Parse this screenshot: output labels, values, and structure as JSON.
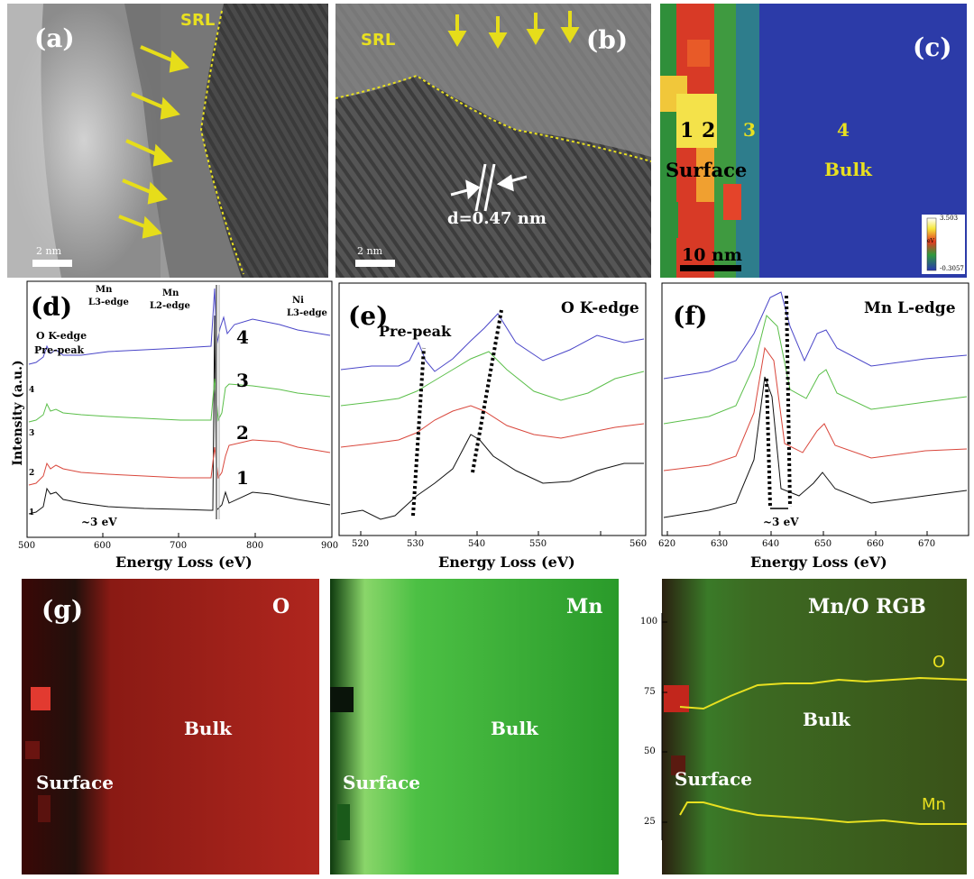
{
  "panel_a": {
    "letter": "(a)",
    "srl": "SRL",
    "scale": "2 nm"
  },
  "panel_b": {
    "letter": "(b)",
    "srl": "SRL",
    "d_spacing": "d=0.47 nm",
    "scale": "2 nm"
  },
  "panel_c": {
    "letter": "(c)",
    "p1": "1",
    "p2": "2",
    "p3": "3",
    "p4": "4",
    "surface": "Surface",
    "bulk": "Bulk",
    "scale": "10 nm",
    "colorbar_max": "3.503",
    "colorbar_min": "-0.3057",
    "colorbar_unit": "eV"
  },
  "panel_d": {
    "letter": "(d)",
    "mn_l3": [
      "Mn",
      "L3-edge"
    ],
    "mn_l2": [
      "Mn",
      "L2-edge"
    ],
    "ni_l3": [
      "Ni",
      "L3-edge"
    ],
    "ok_edge": "O K-edge",
    "prepeak": "Pre-peak",
    "ylabel": "Intensity (a.u.)",
    "xlabel": "Energy Loss (eV)",
    "shift": "~3 eV",
    "curve_labels": [
      "1",
      "2",
      "3",
      "4"
    ],
    "small_labels": [
      "1",
      "2",
      "3",
      "4"
    ],
    "xticks": [
      "500",
      "600",
      "700",
      "800",
      "900"
    ]
  },
  "panel_e": {
    "letter": "(e)",
    "edge": "O K-edge",
    "prepeak": "Pre-peak",
    "xlabel": "Energy Loss (eV)",
    "xticks": [
      "520",
      "530",
      "540",
      "550",
      "560"
    ]
  },
  "panel_f": {
    "letter": "(f)",
    "edge": "Mn L-edge",
    "shift": "~3 eV",
    "xlabel": "Energy Loss (eV)",
    "xticks": [
      "620",
      "630",
      "640",
      "650",
      "660",
      "670"
    ]
  },
  "panel_g": {
    "letter": "(g)",
    "o_map": {
      "title": "O",
      "bulk": "Bulk",
      "surface": "Surface"
    },
    "mn_map": {
      "title": "Mn",
      "bulk": "Bulk",
      "surface": "Surface"
    },
    "rgb_map": {
      "title": "Mn/O RGB",
      "bulk": "Bulk",
      "surface": "Surface",
      "o_line": "O",
      "mn_line": "Mn",
      "yticks": [
        "100",
        "75",
        "50",
        "25"
      ]
    }
  },
  "colors": {
    "srl_line": "#e8e020",
    "arrow": "#e6dd1a",
    "curve1": "#111111",
    "curve2": "#d9473c",
    "curve3": "#5bbf4a",
    "curve4": "#4a46c8"
  }
}
